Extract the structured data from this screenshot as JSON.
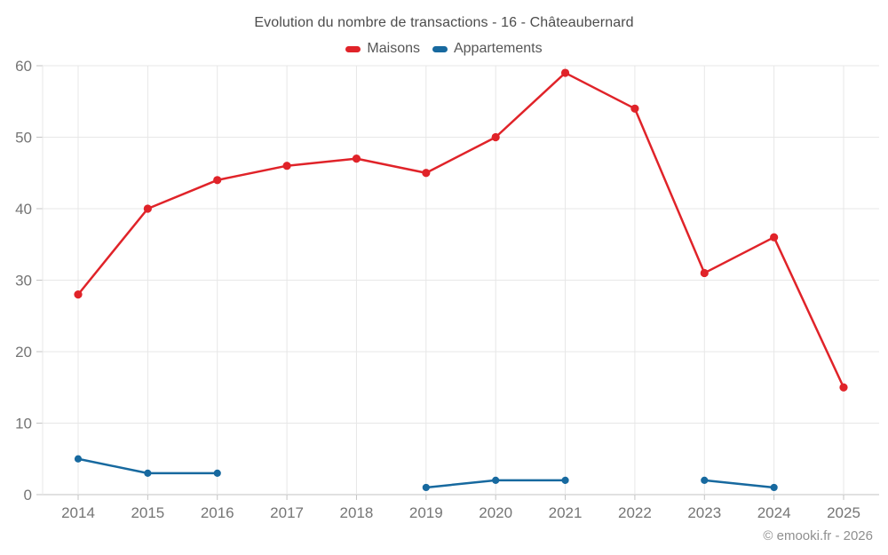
{
  "header": {
    "title": "Evolution du nombre de transactions - 16 - Châteaubernard"
  },
  "chart_data": {
    "type": "line",
    "title": "Evolution du nombre de transactions - 16 - Châteaubernard",
    "categories": [
      "2014",
      "2015",
      "2016",
      "2017",
      "2018",
      "2019",
      "2020",
      "2021",
      "2022",
      "2023",
      "2024",
      "2025"
    ],
    "series": [
      {
        "name": "Maisons",
        "color": "#e02329",
        "values": [
          28,
          40,
          44,
          46,
          47,
          45,
          50,
          59,
          54,
          31,
          36,
          15
        ]
      },
      {
        "name": "Appartements",
        "color": "#17699f",
        "values": [
          5,
          3,
          3,
          null,
          null,
          1,
          2,
          2,
          null,
          2,
          1,
          null
        ]
      }
    ],
    "ylim": [
      0,
      60
    ],
    "yticks": [
      0,
      10,
      20,
      30,
      40,
      50,
      60
    ],
    "grid": true,
    "legend_position": "top",
    "colors": {
      "gridline": "#e7e7e7",
      "axis_line": "#c3c3c3",
      "axis_label": "#757575",
      "title_text": "#4c4c4c",
      "legend_text": "#565656"
    }
  },
  "footer": {
    "copyright": "© emooki.fr - 2026"
  }
}
